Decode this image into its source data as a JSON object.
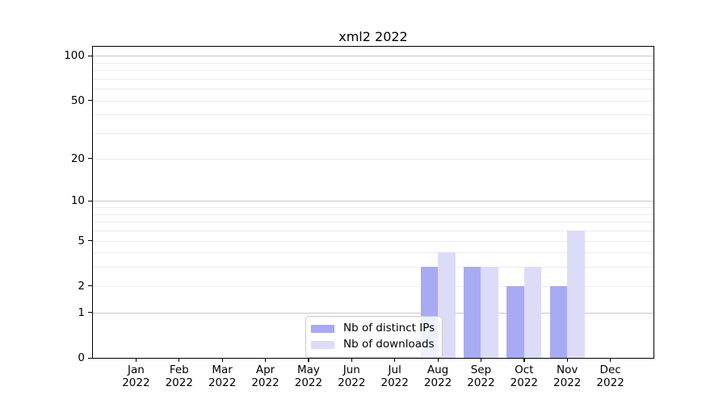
{
  "chart_data": {
    "type": "bar",
    "title": "xml2 2022",
    "y_scale": "log1p",
    "ylim": [
      0,
      115
    ],
    "grid": true,
    "legend_position": "lower-center-inside",
    "categories": [
      "Jan",
      "Feb",
      "Mar",
      "Apr",
      "May",
      "Jun",
      "Jul",
      "Aug",
      "Sep",
      "Oct",
      "Nov",
      "Dec"
    ],
    "year_label": "2022",
    "yticks": [
      0,
      1,
      2,
      5,
      10,
      20,
      50,
      100
    ],
    "decade_gridlines": [
      1,
      10,
      100
    ],
    "minor_gridlines": [
      2,
      3,
      4,
      5,
      6,
      7,
      8,
      9,
      20,
      30,
      40,
      50,
      60,
      70,
      80,
      90
    ],
    "series": [
      {
        "name": "Nb of distinct IPs",
        "color": "#a8aaf4",
        "values": [
          0,
          0,
          0,
          0,
          0,
          0,
          0,
          3,
          3,
          2,
          2,
          0
        ]
      },
      {
        "name": "Nb of downloads",
        "color": "#dcdcf9",
        "values": [
          0,
          0,
          0,
          0,
          0,
          0,
          0,
          4,
          3,
          3,
          6,
          0
        ]
      }
    ]
  },
  "colors": {
    "grid_major": "#c8c8c8",
    "grid_minor": "#ececec",
    "axis": "#000000",
    "legend_border": "#cccccc"
  }
}
